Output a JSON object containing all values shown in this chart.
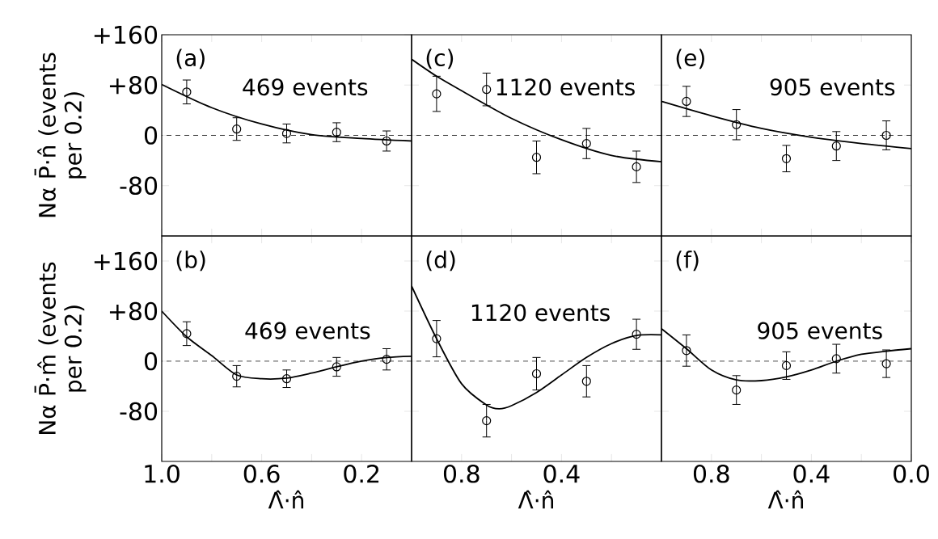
{
  "chart_data": [
    {
      "type": "scatter",
      "ylabel": "Nα P̄·n̂ (events per 0.2)",
      "annotations": [
        "(a)",
        "469 events"
      ],
      "xlim": [
        1.0,
        0.0
      ],
      "ylim": [
        -160,
        160
      ],
      "xticks": [
        {
          "value": 1.0,
          "label": null
        },
        {
          "value": 0.8,
          "label": null
        },
        {
          "value": 0.6,
          "label": null
        },
        {
          "value": 0.4,
          "label": null
        },
        {
          "value": 0.2,
          "label": null
        }
      ],
      "yticks": [
        {
          "value": 160,
          "label": "+160"
        },
        {
          "value": 80,
          "label": "+80"
        },
        0,
        -80
      ],
      "tick_labels": "y",
      "ref_lines": [
        {
          "axis": "y",
          "value": 0,
          "line_style": "dashed"
        }
      ],
      "series": [
        {
          "marker": "circle",
          "color": "#000000",
          "x": [
            0.9,
            0.7,
            0.5,
            0.3,
            0.1
          ],
          "values": [
            69,
            10,
            3,
            5,
            -9
          ],
          "errors": [
            19,
            18,
            15,
            15,
            16
          ]
        },
        {
          "type": "line",
          "marker": "none",
          "color": "#000000",
          "x": [
            1.0,
            0.8,
            0.6,
            0.4,
            0.2,
            0.0
          ],
          "values": [
            81,
            44,
            18,
            1,
            -5,
            -9
          ]
        }
      ]
    },
    {
      "type": "scatter",
      "annotations": [
        "(c)",
        "1120 events"
      ],
      "xlim": [
        1.0,
        0.0
      ],
      "ylim": [
        -160,
        160
      ],
      "xticks": [
        {
          "value": 0.8,
          "label": null
        },
        {
          "value": 0.6,
          "label": null
        },
        {
          "value": 0.4,
          "label": null
        },
        {
          "value": 0.2,
          "label": null
        }
      ],
      "yticks": [
        {
          "value": 80,
          "label": null
        },
        {
          "value": 0,
          "label": null
        },
        {
          "value": -80,
          "label": null
        }
      ],
      "tick_labels": false,
      "ref_lines": [
        {
          "axis": "y",
          "value": 0,
          "line_style": "dashed"
        }
      ],
      "series": [
        {
          "marker": "circle",
          "color": "#000000",
          "x": [
            0.9,
            0.7,
            0.5,
            0.3,
            0.1
          ],
          "values": [
            66,
            73,
            -35,
            -13,
            -50
          ],
          "errors": [
            28,
            26,
            26,
            24,
            25
          ]
        },
        {
          "type": "line",
          "marker": "none",
          "color": "#000000",
          "x": [
            1.0,
            0.9,
            0.8,
            0.6,
            0.4,
            0.2,
            0.0
          ],
          "values": [
            121,
            94,
            71,
            27,
            -7,
            -32,
            -42
          ]
        }
      ]
    },
    {
      "type": "scatter",
      "annotations": [
        "(e)",
        "905 events"
      ],
      "xlim": [
        1.0,
        0.0
      ],
      "ylim": [
        -160,
        160
      ],
      "xticks": [
        {
          "value": 0.8,
          "label": null
        },
        {
          "value": 0.6,
          "label": null
        },
        {
          "value": 0.4,
          "label": null
        },
        {
          "value": 0.2,
          "label": null
        }
      ],
      "yticks": [
        {
          "value": 80,
          "label": null
        },
        {
          "value": 0,
          "label": null
        },
        {
          "value": -80,
          "label": null
        }
      ],
      "tick_labels": false,
      "ref_lines": [
        {
          "axis": "y",
          "value": 0,
          "line_style": "dashed"
        }
      ],
      "series": [
        {
          "marker": "circle",
          "color": "#000000",
          "x": [
            0.9,
            0.7,
            0.5,
            0.3,
            0.1
          ],
          "values": [
            54,
            17,
            -37,
            -17,
            0
          ],
          "errors": [
            24,
            24,
            21,
            23,
            23
          ]
        },
        {
          "type": "line",
          "marker": "none",
          "color": "#000000",
          "x": [
            1.0,
            0.8,
            0.6,
            0.4,
            0.2,
            0.0
          ],
          "values": [
            54,
            31,
            11,
            -3,
            -13,
            -21
          ]
        }
      ]
    },
    {
      "type": "scatter",
      "ylabel": "Nα P̄·m̂ (events per 0.2)",
      "xlabel": "Λ̂·n̂",
      "annotations": [
        "(b)",
        "469 events"
      ],
      "xlim": [
        1.0,
        0.0
      ],
      "ylim": [
        -160,
        200
      ],
      "xticks": [
        {
          "value": 1.0,
          "label": "1.0"
        },
        {
          "value": 0.8,
          "label": null
        },
        {
          "value": 0.6,
          "label": "0.6"
        },
        {
          "value": 0.4,
          "label": null
        },
        {
          "value": 0.2,
          "label": "0.2"
        }
      ],
      "yticks": [
        {
          "value": 160,
          "label": "+160"
        },
        {
          "value": 80,
          "label": "+80"
        },
        0,
        -80
      ],
      "ref_lines": [
        {
          "axis": "y",
          "value": 0,
          "line_style": "dashed"
        }
      ],
      "series": [
        {
          "marker": "circle",
          "color": "#000000",
          "x": [
            0.9,
            0.7,
            0.5,
            0.3,
            0.1
          ],
          "values": [
            44,
            -24,
            -28,
            -9,
            3
          ],
          "errors": [
            19,
            17,
            14,
            15,
            17
          ]
        },
        {
          "type": "line",
          "marker": "none",
          "color": "#000000",
          "x": [
            1.0,
            0.9,
            0.8,
            0.7,
            0.6,
            0.5,
            0.4,
            0.3,
            0.2,
            0.1,
            0.0
          ],
          "values": [
            80,
            39,
            9,
            -22,
            -28,
            -27,
            -19,
            -9,
            0,
            6,
            8
          ]
        }
      ]
    },
    {
      "type": "scatter",
      "xlabel": "Λ̂·n̂",
      "annotations": [
        "(d)",
        "1120 events"
      ],
      "xlim": [
        1.0,
        0.0
      ],
      "ylim": [
        -160,
        200
      ],
      "xticks": [
        {
          "value": 0.8,
          "label": "0.8"
        },
        {
          "value": 0.6,
          "label": null
        },
        {
          "value": 0.4,
          "label": "0.4"
        },
        {
          "value": 0.2,
          "label": null
        }
      ],
      "yticks": [
        160,
        80,
        0,
        -80
      ],
      "tick_labels": "x",
      "ref_lines": [
        {
          "axis": "y",
          "value": 0,
          "line_style": "dashed"
        }
      ],
      "series": [
        {
          "marker": "circle",
          "color": "#000000",
          "x": [
            0.9,
            0.7,
            0.5,
            0.3,
            0.1
          ],
          "values": [
            36,
            -95,
            -20,
            -32,
            43
          ],
          "errors": [
            29,
            26,
            26,
            25,
            24
          ]
        },
        {
          "type": "line",
          "marker": "none",
          "color": "#000000",
          "x": [
            1.0,
            0.9,
            0.8,
            0.7,
            0.65,
            0.6,
            0.5,
            0.4,
            0.3,
            0.2,
            0.1,
            0.0
          ],
          "values": [
            120,
            36,
            -36,
            -70,
            -76,
            -71,
            -50,
            -22,
            6,
            28,
            41,
            42
          ]
        }
      ]
    },
    {
      "type": "scatter",
      "xlabel": "Λ̂·n̂",
      "annotations": [
        "(f)",
        "905 events"
      ],
      "xlim": [
        1.0,
        0.0
      ],
      "ylim": [
        -160,
        200
      ],
      "xticks": [
        {
          "value": 0.8,
          "label": "0.8"
        },
        {
          "value": 0.6,
          "label": null
        },
        {
          "value": 0.4,
          "label": "0.4"
        },
        {
          "value": 0.2,
          "label": null
        },
        {
          "value": 0.0,
          "label": "0.0"
        }
      ],
      "yticks": [
        160,
        80,
        0,
        -80
      ],
      "tick_labels": "x",
      "ref_lines": [
        {
          "axis": "y",
          "value": 0,
          "line_style": "dashed"
        }
      ],
      "series": [
        {
          "marker": "circle",
          "color": "#000000",
          "x": [
            0.9,
            0.7,
            0.5,
            0.3,
            0.1
          ],
          "values": [
            17,
            -46,
            -7,
            4,
            -4
          ],
          "errors": [
            25,
            23,
            22,
            23,
            22
          ]
        },
        {
          "type": "line",
          "marker": "none",
          "color": "#000000",
          "x": [
            1.0,
            0.9,
            0.8,
            0.7,
            0.6,
            0.5,
            0.4,
            0.3,
            0.2,
            0.1,
            0.0
          ],
          "values": [
            52,
            20,
            -14,
            -30,
            -31,
            -25,
            -14,
            0,
            11,
            16,
            20
          ]
        }
      ]
    }
  ]
}
